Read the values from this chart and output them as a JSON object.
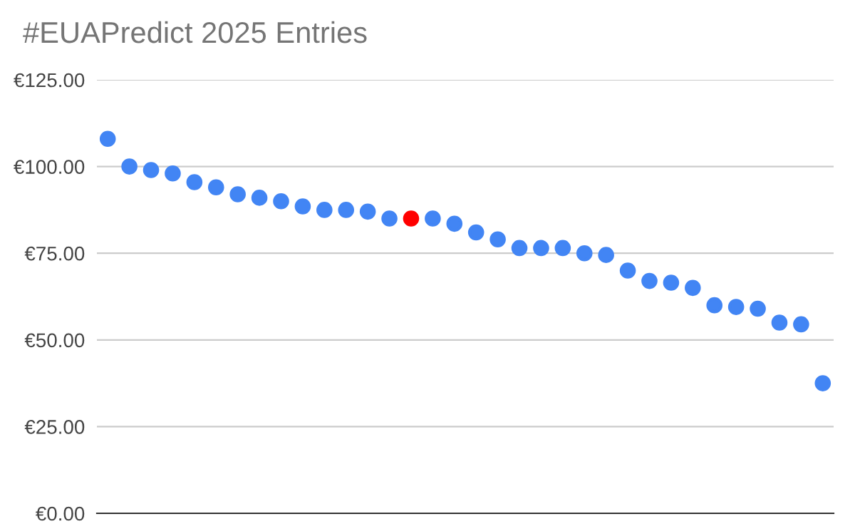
{
  "chart_data": {
    "type": "scatter",
    "title": "#EUAPredict 2025 Entries",
    "categories": [
      null,
      null,
      null,
      null,
      null,
      null,
      null,
      null,
      null,
      null,
      null,
      null,
      null,
      null,
      null,
      null,
      null,
      null,
      null,
      null,
      null,
      null,
      null,
      null,
      null,
      null,
      null,
      null,
      null,
      null,
      null,
      null,
      null,
      null
    ],
    "values": [
      108,
      100,
      99,
      98,
      95.5,
      94,
      92,
      91,
      90,
      88.5,
      87.5,
      87.5,
      87,
      85,
      85,
      85,
      83.5,
      81,
      79,
      76.5,
      76.5,
      76.5,
      75,
      74.5,
      70,
      67,
      66.5,
      65,
      60,
      59.5,
      59,
      55,
      54.5,
      37.5
    ],
    "colors": [
      "#4285f4",
      "#4285f4",
      "#4285f4",
      "#4285f4",
      "#4285f4",
      "#4285f4",
      "#4285f4",
      "#4285f4",
      "#4285f4",
      "#4285f4",
      "#4285f4",
      "#4285f4",
      "#4285f4",
      "#4285f4",
      "#ff0000",
      "#4285f4",
      "#4285f4",
      "#4285f4",
      "#4285f4",
      "#4285f4",
      "#4285f4",
      "#4285f4",
      "#4285f4",
      "#4285f4",
      "#4285f4",
      "#4285f4",
      "#4285f4",
      "#4285f4",
      "#4285f4",
      "#4285f4",
      "#4285f4",
      "#4285f4",
      "#4285f4",
      "#4285f4"
    ],
    "ylim": [
      0,
      125
    ],
    "yticks": [
      {
        "value": 0,
        "label": "€0.00"
      },
      {
        "value": 25,
        "label": "€25.00"
      },
      {
        "value": 50,
        "label": "€50.00"
      },
      {
        "value": 75,
        "label": "€75.00"
      },
      {
        "value": 100,
        "label": "€100.00"
      },
      {
        "value": 125,
        "label": "€125.00"
      }
    ],
    "grid": "y",
    "legend": false,
    "marker": "circle"
  }
}
